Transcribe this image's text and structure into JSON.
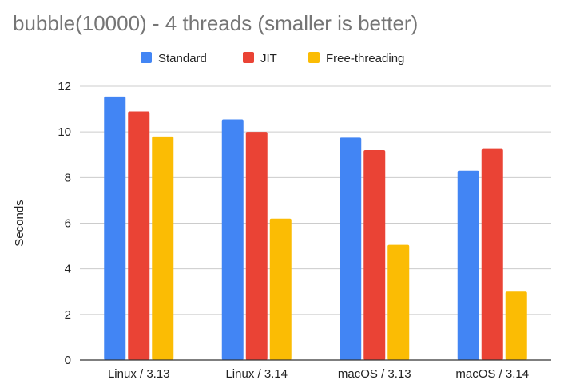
{
  "chart_data": {
    "type": "bar",
    "title": "bubble(10000) - 4 threads (smaller is better)",
    "xlabel": "",
    "ylabel": "Seconds",
    "categories": [
      "Linux / 3.13",
      "Linux / 3.14",
      "macOS / 3.13",
      "macOS / 3.14"
    ],
    "series": [
      {
        "name": "Standard",
        "color": "#4285f4",
        "values": [
          11.55,
          10.55,
          9.75,
          8.3
        ]
      },
      {
        "name": "JIT",
        "color": "#ea4335",
        "values": [
          10.9,
          10.0,
          9.2,
          9.25
        ]
      },
      {
        "name": "Free-threading",
        "color": "#fbbc04",
        "values": [
          9.8,
          6.2,
          5.05,
          3.0
        ]
      }
    ],
    "ylim": [
      0,
      12
    ],
    "yticks": [
      0,
      2,
      4,
      6,
      8,
      10,
      12
    ],
    "grid": true,
    "legend_position": "top"
  }
}
